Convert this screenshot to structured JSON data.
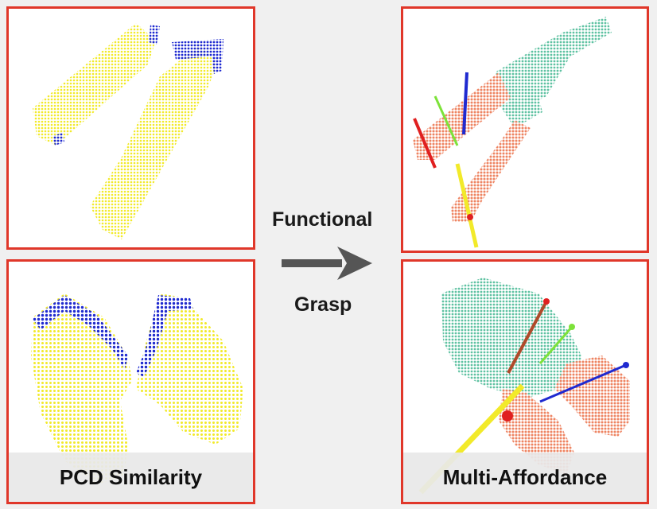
{
  "panels": {
    "bottom_left_caption": "PCD Similarity",
    "bottom_right_caption": "Multi-Affordance"
  },
  "middle": {
    "top_label": "Functional",
    "bottom_label": "Grasp"
  },
  "colors": {
    "border": "#e0372a",
    "object_yellow": "#f2ea2a",
    "contact_blue": "#1f2ad0",
    "region_teal": "#5fc2a2",
    "region_orange": "#ee8462",
    "arrow_gray": "#555555"
  }
}
